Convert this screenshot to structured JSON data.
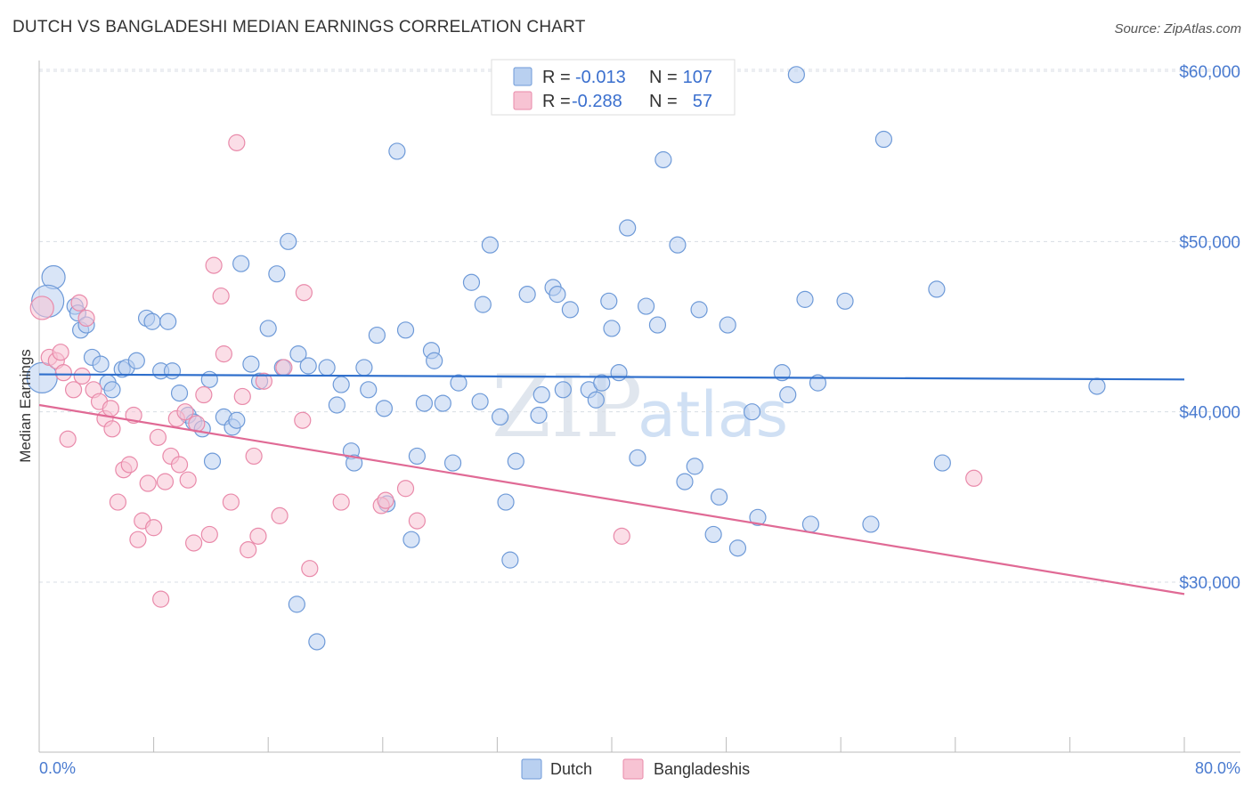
{
  "header": {
    "title": "DUTCH VS BANGLADESHI MEDIAN EARNINGS CORRELATION CHART",
    "source": "Source: ZipAtlas.com"
  },
  "legend_top": {
    "rows": [
      {
        "r_label": "R =",
        "r_value": "-0.013",
        "n_label": "N =",
        "n_value": "107",
        "color": "#a9c6ee"
      },
      {
        "r_label": "R =",
        "r_value": "-0.288",
        "n_label": "N =",
        "n_value": "57",
        "color": "#f4b9cc"
      }
    ]
  },
  "chart_data": {
    "type": "scatter",
    "ylabel": "Median Earnings",
    "x_tick_labels": [
      "0.0%",
      "80.0%"
    ],
    "y_tick_labels": [
      "$30,000",
      "$40,000",
      "$50,000",
      "$60,000"
    ],
    "xlim": [
      0,
      80
    ],
    "ylim": [
      20000,
      62000
    ],
    "y_ticks": [
      30000,
      40000,
      50000,
      60000
    ],
    "grid": true,
    "colors": {
      "dutch_fill": "#b9d0f0",
      "dutch_stroke": "#6e9ad8",
      "dutch_line": "#2f6fcc",
      "bangla_fill": "#f7c3d3",
      "bangla_stroke": "#e98aaa",
      "bangla_line": "#e06a95"
    },
    "series": [
      {
        "name": "Dutch",
        "trend": {
          "x0": 0,
          "y0": 42200,
          "x1": 80,
          "y1": 41900
        },
        "points": [
          [
            1.0,
            47900
          ],
          [
            0.6,
            46500
          ],
          [
            0.2,
            42000
          ],
          [
            2.5,
            46200
          ],
          [
            2.7,
            45800
          ],
          [
            2.9,
            44800
          ],
          [
            3.3,
            45100
          ],
          [
            3.7,
            43200
          ],
          [
            4.3,
            42800
          ],
          [
            4.8,
            41700
          ],
          [
            5.1,
            41300
          ],
          [
            5.8,
            42500
          ],
          [
            6.1,
            42600
          ],
          [
            6.8,
            43000
          ],
          [
            7.5,
            45500
          ],
          [
            7.9,
            45300
          ],
          [
            8.5,
            42400
          ],
          [
            9.0,
            45300
          ],
          [
            9.3,
            42400
          ],
          [
            9.8,
            41100
          ],
          [
            10.4,
            39800
          ],
          [
            10.8,
            39400
          ],
          [
            11.4,
            39000
          ],
          [
            11.9,
            41900
          ],
          [
            12.1,
            37100
          ],
          [
            12.9,
            39700
          ],
          [
            13.5,
            39100
          ],
          [
            13.8,
            39500
          ],
          [
            14.1,
            48700
          ],
          [
            14.8,
            42800
          ],
          [
            15.4,
            41800
          ],
          [
            16.0,
            44900
          ],
          [
            16.6,
            48100
          ],
          [
            17.0,
            42600
          ],
          [
            17.4,
            50000
          ],
          [
            18.1,
            43400
          ],
          [
            18.0,
            28700
          ],
          [
            18.8,
            42700
          ],
          [
            19.4,
            26500
          ],
          [
            20.1,
            42600
          ],
          [
            20.8,
            40400
          ],
          [
            21.1,
            41600
          ],
          [
            21.8,
            37700
          ],
          [
            22.0,
            37000
          ],
          [
            22.7,
            42600
          ],
          [
            23.0,
            41300
          ],
          [
            23.6,
            44500
          ],
          [
            24.1,
            40200
          ],
          [
            24.3,
            34600
          ],
          [
            25.0,
            55300
          ],
          [
            25.6,
            44800
          ],
          [
            26.0,
            32500
          ],
          [
            26.4,
            37400
          ],
          [
            26.9,
            40500
          ],
          [
            27.4,
            43600
          ],
          [
            27.6,
            43000
          ],
          [
            28.2,
            40500
          ],
          [
            28.9,
            37000
          ],
          [
            29.3,
            41700
          ],
          [
            30.2,
            47600
          ],
          [
            30.8,
            40600
          ],
          [
            31.0,
            46300
          ],
          [
            31.5,
            49800
          ],
          [
            32.2,
            39700
          ],
          [
            32.6,
            34700
          ],
          [
            32.9,
            31300
          ],
          [
            33.3,
            37100
          ],
          [
            34.1,
            46900
          ],
          [
            34.9,
            39800
          ],
          [
            35.1,
            41000
          ],
          [
            35.9,
            47300
          ],
          [
            36.2,
            46900
          ],
          [
            36.6,
            41300
          ],
          [
            37.1,
            46000
          ],
          [
            38.4,
            41300
          ],
          [
            38.9,
            40700
          ],
          [
            39.3,
            41700
          ],
          [
            39.8,
            46500
          ],
          [
            40.0,
            44900
          ],
          [
            40.5,
            42300
          ],
          [
            41.1,
            50800
          ],
          [
            41.8,
            37300
          ],
          [
            42.4,
            46200
          ],
          [
            43.2,
            45100
          ],
          [
            43.6,
            54800
          ],
          [
            44.6,
            49800
          ],
          [
            45.1,
            35900
          ],
          [
            45.8,
            36800
          ],
          [
            46.1,
            46000
          ],
          [
            47.1,
            32800
          ],
          [
            47.5,
            35000
          ],
          [
            48.1,
            45100
          ],
          [
            48.8,
            32000
          ],
          [
            49.8,
            40000
          ],
          [
            50.2,
            33800
          ],
          [
            51.9,
            42300
          ],
          [
            52.3,
            41000
          ],
          [
            52.9,
            59800
          ],
          [
            53.5,
            46600
          ],
          [
            53.9,
            33400
          ],
          [
            54.4,
            41700
          ],
          [
            56.3,
            46500
          ],
          [
            58.1,
            33400
          ],
          [
            59.0,
            56000
          ],
          [
            62.7,
            47200
          ],
          [
            63.1,
            37000
          ],
          [
            73.9,
            41500
          ]
        ]
      },
      {
        "name": "Bangladeshis",
        "trend": {
          "x0": 0,
          "y0": 40400,
          "x1": 80,
          "y1": 29300
        },
        "points": [
          [
            0.2,
            46100
          ],
          [
            0.7,
            43200
          ],
          [
            1.2,
            43000
          ],
          [
            1.5,
            43500
          ],
          [
            1.7,
            42300
          ],
          [
            2.0,
            38400
          ],
          [
            2.4,
            41300
          ],
          [
            2.8,
            46400
          ],
          [
            3.0,
            42100
          ],
          [
            3.3,
            45500
          ],
          [
            3.8,
            41300
          ],
          [
            4.2,
            40600
          ],
          [
            4.6,
            39600
          ],
          [
            5.0,
            40200
          ],
          [
            5.1,
            39000
          ],
          [
            5.5,
            34700
          ],
          [
            5.9,
            36600
          ],
          [
            6.3,
            36900
          ],
          [
            6.6,
            39800
          ],
          [
            6.9,
            32500
          ],
          [
            7.2,
            33600
          ],
          [
            7.6,
            35800
          ],
          [
            8.0,
            33200
          ],
          [
            8.3,
            38500
          ],
          [
            8.5,
            29000
          ],
          [
            8.8,
            35900
          ],
          [
            9.2,
            37400
          ],
          [
            9.6,
            39600
          ],
          [
            9.8,
            36900
          ],
          [
            10.2,
            40000
          ],
          [
            10.4,
            36000
          ],
          [
            10.8,
            32300
          ],
          [
            11.0,
            39300
          ],
          [
            11.5,
            41000
          ],
          [
            11.9,
            32800
          ],
          [
            12.2,
            48600
          ],
          [
            12.7,
            46800
          ],
          [
            12.9,
            43400
          ],
          [
            13.4,
            34700
          ],
          [
            13.8,
            55800
          ],
          [
            14.2,
            40900
          ],
          [
            14.6,
            31900
          ],
          [
            15.0,
            37400
          ],
          [
            15.3,
            32700
          ],
          [
            15.7,
            41800
          ],
          [
            16.8,
            33900
          ],
          [
            17.1,
            42600
          ],
          [
            18.4,
            39500
          ],
          [
            18.5,
            47000
          ],
          [
            18.9,
            30800
          ],
          [
            21.1,
            34700
          ],
          [
            23.9,
            34500
          ],
          [
            24.2,
            34800
          ],
          [
            25.6,
            35500
          ],
          [
            26.4,
            33600
          ],
          [
            40.7,
            32700
          ],
          [
            65.3,
            36100
          ]
        ]
      }
    ]
  },
  "legend_bottom": {
    "items": [
      {
        "label": "Dutch",
        "color": "#b9d0f0"
      },
      {
        "label": "Bangladeshis",
        "color": "#f7c3d3"
      }
    ]
  },
  "watermark": {
    "text1": "ZIP",
    "text2": "atlas"
  }
}
